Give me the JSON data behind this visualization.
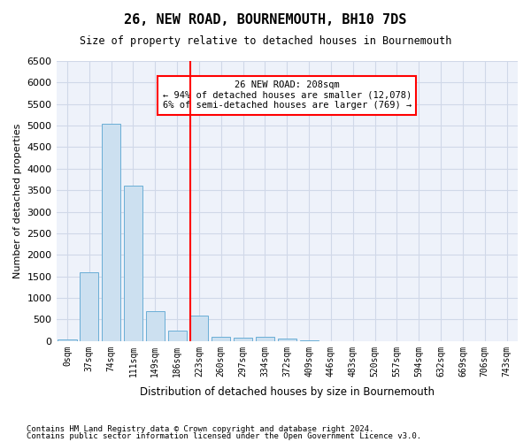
{
  "title": "26, NEW ROAD, BOURNEMOUTH, BH10 7DS",
  "subtitle": "Size of property relative to detached houses in Bournemouth",
  "xlabel": "Distribution of detached houses by size in Bournemouth",
  "ylabel": "Number of detached properties",
  "footnote1": "Contains HM Land Registry data © Crown copyright and database right 2024.",
  "footnote2": "Contains public sector information licensed under the Open Government Licence v3.0.",
  "bar_labels": [
    "0sqm",
    "37sqm",
    "74sqm",
    "111sqm",
    "149sqm",
    "186sqm",
    "223sqm",
    "260sqm",
    "297sqm",
    "334sqm",
    "372sqm",
    "409sqm",
    "446sqm",
    "483sqm",
    "520sqm",
    "557sqm",
    "594sqm",
    "632sqm",
    "669sqm",
    "706sqm",
    "743sqm"
  ],
  "bar_values": [
    30,
    1600,
    5050,
    3600,
    700,
    250,
    600,
    100,
    70,
    100,
    50,
    20,
    5,
    0,
    0,
    0,
    0,
    0,
    0,
    0,
    0
  ],
  "bar_color": "#cce0f0",
  "bar_edge_color": "#6aaed6",
  "grid_color": "#d0d8e8",
  "vline_color": "red",
  "annotation_title": "26 NEW ROAD: 208sqm",
  "annotation_line1": "← 94% of detached houses are smaller (12,078)",
  "annotation_line2": "6% of semi-detached houses are larger (769) →",
  "annotation_box_color": "red",
  "ylim": [
    0,
    6500
  ],
  "yticks": [
    0,
    500,
    1000,
    1500,
    2000,
    2500,
    3000,
    3500,
    4000,
    4500,
    5000,
    5500,
    6000,
    6500
  ],
  "bg_color": "#eef2fa"
}
